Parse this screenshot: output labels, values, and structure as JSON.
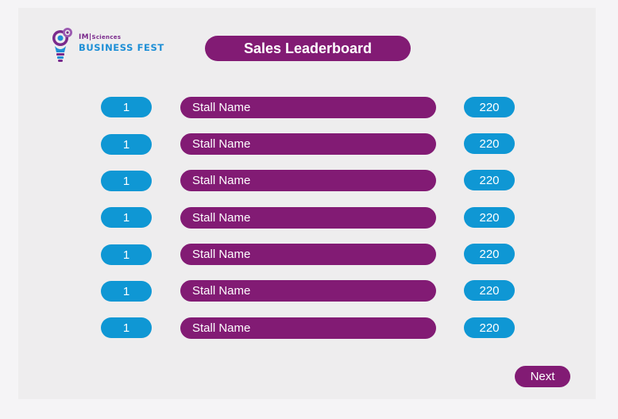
{
  "logo": {
    "prefix": "IM|",
    "small_text": "Sciences",
    "main_text": "BUSINESS FEST"
  },
  "title": "Sales Leaderboard",
  "leaderboard": [
    {
      "rank": "1",
      "name": "Stall Name",
      "score": "220"
    },
    {
      "rank": "1",
      "name": "Stall Name",
      "score": "220"
    },
    {
      "rank": "1",
      "name": "Stall Name",
      "score": "220"
    },
    {
      "rank": "1",
      "name": "Stall Name",
      "score": "220"
    },
    {
      "rank": "1",
      "name": "Stall Name",
      "score": "220"
    },
    {
      "rank": "1",
      "name": "Stall Name",
      "score": "220"
    },
    {
      "rank": "1",
      "name": "Stall Name",
      "score": "220"
    }
  ],
  "next_label": "Next",
  "colors": {
    "purple": "#821b74",
    "blue": "#0f97d4",
    "panel": "#eeedee"
  }
}
